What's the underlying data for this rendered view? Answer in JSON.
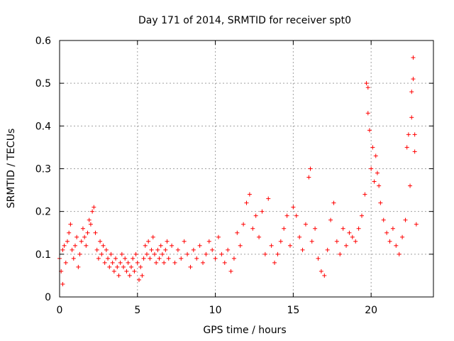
{
  "chart_data": {
    "type": "scatter",
    "title": "Day 171 of 2014, SRMTID for receiver spt0",
    "xlabel": "GPS time / hours",
    "ylabel": "SRMTID / TECUs",
    "xlim": [
      0,
      24
    ],
    "ylim": [
      0,
      0.6
    ],
    "x_ticks": [
      0,
      5,
      10,
      15,
      20
    ],
    "y_ticks": [
      0,
      0.1,
      0.2,
      0.3,
      0.4,
      0.5,
      0.6
    ],
    "x_tick_labels": [
      "0",
      "5",
      "10",
      "15",
      "20"
    ],
    "y_tick_labels": [
      "0",
      "0.1",
      "0.2",
      "0.3",
      "0.4",
      "0.5",
      "0.6"
    ],
    "grid": true,
    "marker": "+",
    "marker_color": "#ff0000",
    "series": [
      {
        "name": "spt0",
        "points": [
          [
            0.0,
            0.09
          ],
          [
            0.1,
            0.06
          ],
          [
            0.2,
            0.03
          ],
          [
            0.2,
            0.11
          ],
          [
            0.3,
            0.12
          ],
          [
            0.4,
            0.08
          ],
          [
            0.5,
            0.13
          ],
          [
            0.6,
            0.15
          ],
          [
            0.7,
            0.17
          ],
          [
            0.8,
            0.11
          ],
          [
            0.9,
            0.09
          ],
          [
            1.0,
            0.12
          ],
          [
            1.1,
            0.14
          ],
          [
            1.2,
            0.07
          ],
          [
            1.3,
            0.1
          ],
          [
            1.4,
            0.13
          ],
          [
            1.5,
            0.16
          ],
          [
            1.6,
            0.14
          ],
          [
            1.7,
            0.12
          ],
          [
            1.8,
            0.15
          ],
          [
            1.9,
            0.18
          ],
          [
            2.0,
            0.17
          ],
          [
            2.1,
            0.2
          ],
          [
            2.2,
            0.21
          ],
          [
            2.3,
            0.15
          ],
          [
            2.4,
            0.11
          ],
          [
            2.5,
            0.09
          ],
          [
            2.6,
            0.13
          ],
          [
            2.7,
            0.1
          ],
          [
            2.8,
            0.12
          ],
          [
            2.9,
            0.08
          ],
          [
            3.0,
            0.11
          ],
          [
            3.1,
            0.09
          ],
          [
            3.2,
            0.07
          ],
          [
            3.3,
            0.1
          ],
          [
            3.4,
            0.08
          ],
          [
            3.5,
            0.06
          ],
          [
            3.6,
            0.09
          ],
          [
            3.7,
            0.07
          ],
          [
            3.8,
            0.05
          ],
          [
            3.9,
            0.08
          ],
          [
            4.0,
            0.1
          ],
          [
            4.1,
            0.07
          ],
          [
            4.2,
            0.09
          ],
          [
            4.3,
            0.06
          ],
          [
            4.4,
            0.08
          ],
          [
            4.5,
            0.05
          ],
          [
            4.6,
            0.07
          ],
          [
            4.7,
            0.09
          ],
          [
            4.8,
            0.06
          ],
          [
            4.9,
            0.1
          ],
          [
            5.0,
            0.08
          ],
          [
            5.1,
            0.04
          ],
          [
            5.2,
            0.07
          ],
          [
            5.3,
            0.05
          ],
          [
            5.4,
            0.09
          ],
          [
            5.5,
            0.12
          ],
          [
            5.6,
            0.1
          ],
          [
            5.7,
            0.13
          ],
          [
            5.8,
            0.09
          ],
          [
            5.9,
            0.11
          ],
          [
            6.0,
            0.14
          ],
          [
            6.1,
            0.1
          ],
          [
            6.2,
            0.08
          ],
          [
            6.3,
            0.11
          ],
          [
            6.4,
            0.09
          ],
          [
            6.5,
            0.12
          ],
          [
            6.6,
            0.1
          ],
          [
            6.7,
            0.08
          ],
          [
            6.8,
            0.11
          ],
          [
            6.9,
            0.13
          ],
          [
            7.0,
            0.09
          ],
          [
            7.2,
            0.12
          ],
          [
            7.4,
            0.08
          ],
          [
            7.6,
            0.11
          ],
          [
            7.8,
            0.09
          ],
          [
            8.0,
            0.13
          ],
          [
            8.2,
            0.1
          ],
          [
            8.4,
            0.07
          ],
          [
            8.6,
            0.11
          ],
          [
            8.8,
            0.09
          ],
          [
            9.0,
            0.12
          ],
          [
            9.2,
            0.08
          ],
          [
            9.4,
            0.1
          ],
          [
            9.6,
            0.13
          ],
          [
            9.8,
            0.11
          ],
          [
            10.0,
            0.09
          ],
          [
            10.2,
            0.14
          ],
          [
            10.4,
            0.1
          ],
          [
            10.6,
            0.08
          ],
          [
            10.8,
            0.11
          ],
          [
            11.0,
            0.06
          ],
          [
            11.2,
            0.09
          ],
          [
            11.4,
            0.15
          ],
          [
            11.6,
            0.12
          ],
          [
            11.8,
            0.17
          ],
          [
            12.0,
            0.22
          ],
          [
            12.2,
            0.24
          ],
          [
            12.4,
            0.16
          ],
          [
            12.6,
            0.19
          ],
          [
            12.8,
            0.14
          ],
          [
            13.0,
            0.2
          ],
          [
            13.2,
            0.1
          ],
          [
            13.4,
            0.23
          ],
          [
            13.6,
            0.12
          ],
          [
            13.8,
            0.08
          ],
          [
            14.0,
            0.1
          ],
          [
            14.2,
            0.13
          ],
          [
            14.4,
            0.16
          ],
          [
            14.6,
            0.19
          ],
          [
            14.8,
            0.12
          ],
          [
            15.0,
            0.21
          ],
          [
            15.2,
            0.19
          ],
          [
            15.4,
            0.14
          ],
          [
            15.6,
            0.11
          ],
          [
            15.8,
            0.17
          ],
          [
            16.0,
            0.28
          ],
          [
            16.1,
            0.3
          ],
          [
            16.2,
            0.13
          ],
          [
            16.4,
            0.16
          ],
          [
            16.6,
            0.09
          ],
          [
            16.8,
            0.06
          ],
          [
            17.0,
            0.05
          ],
          [
            17.2,
            0.11
          ],
          [
            17.4,
            0.18
          ],
          [
            17.6,
            0.22
          ],
          [
            17.8,
            0.13
          ],
          [
            18.0,
            0.1
          ],
          [
            18.2,
            0.16
          ],
          [
            18.4,
            0.12
          ],
          [
            18.6,
            0.15
          ],
          [
            18.8,
            0.14
          ],
          [
            19.0,
            0.13
          ],
          [
            19.2,
            0.16
          ],
          [
            19.4,
            0.19
          ],
          [
            19.6,
            0.24
          ],
          [
            19.7,
            0.5
          ],
          [
            19.8,
            0.49
          ],
          [
            19.8,
            0.43
          ],
          [
            19.9,
            0.39
          ],
          [
            20.0,
            0.3
          ],
          [
            20.1,
            0.35
          ],
          [
            20.2,
            0.27
          ],
          [
            20.3,
            0.33
          ],
          [
            20.4,
            0.29
          ],
          [
            20.5,
            0.26
          ],
          [
            20.6,
            0.22
          ],
          [
            20.8,
            0.18
          ],
          [
            21.0,
            0.15
          ],
          [
            21.2,
            0.13
          ],
          [
            21.4,
            0.16
          ],
          [
            21.6,
            0.12
          ],
          [
            21.8,
            0.1
          ],
          [
            22.0,
            0.14
          ],
          [
            22.2,
            0.18
          ],
          [
            22.3,
            0.35
          ],
          [
            22.4,
            0.38
          ],
          [
            22.5,
            0.26
          ],
          [
            22.6,
            0.42
          ],
          [
            22.6,
            0.48
          ],
          [
            22.7,
            0.51
          ],
          [
            22.7,
            0.56
          ],
          [
            22.8,
            0.38
          ],
          [
            22.8,
            0.34
          ],
          [
            22.9,
            0.17
          ]
        ]
      }
    ]
  }
}
